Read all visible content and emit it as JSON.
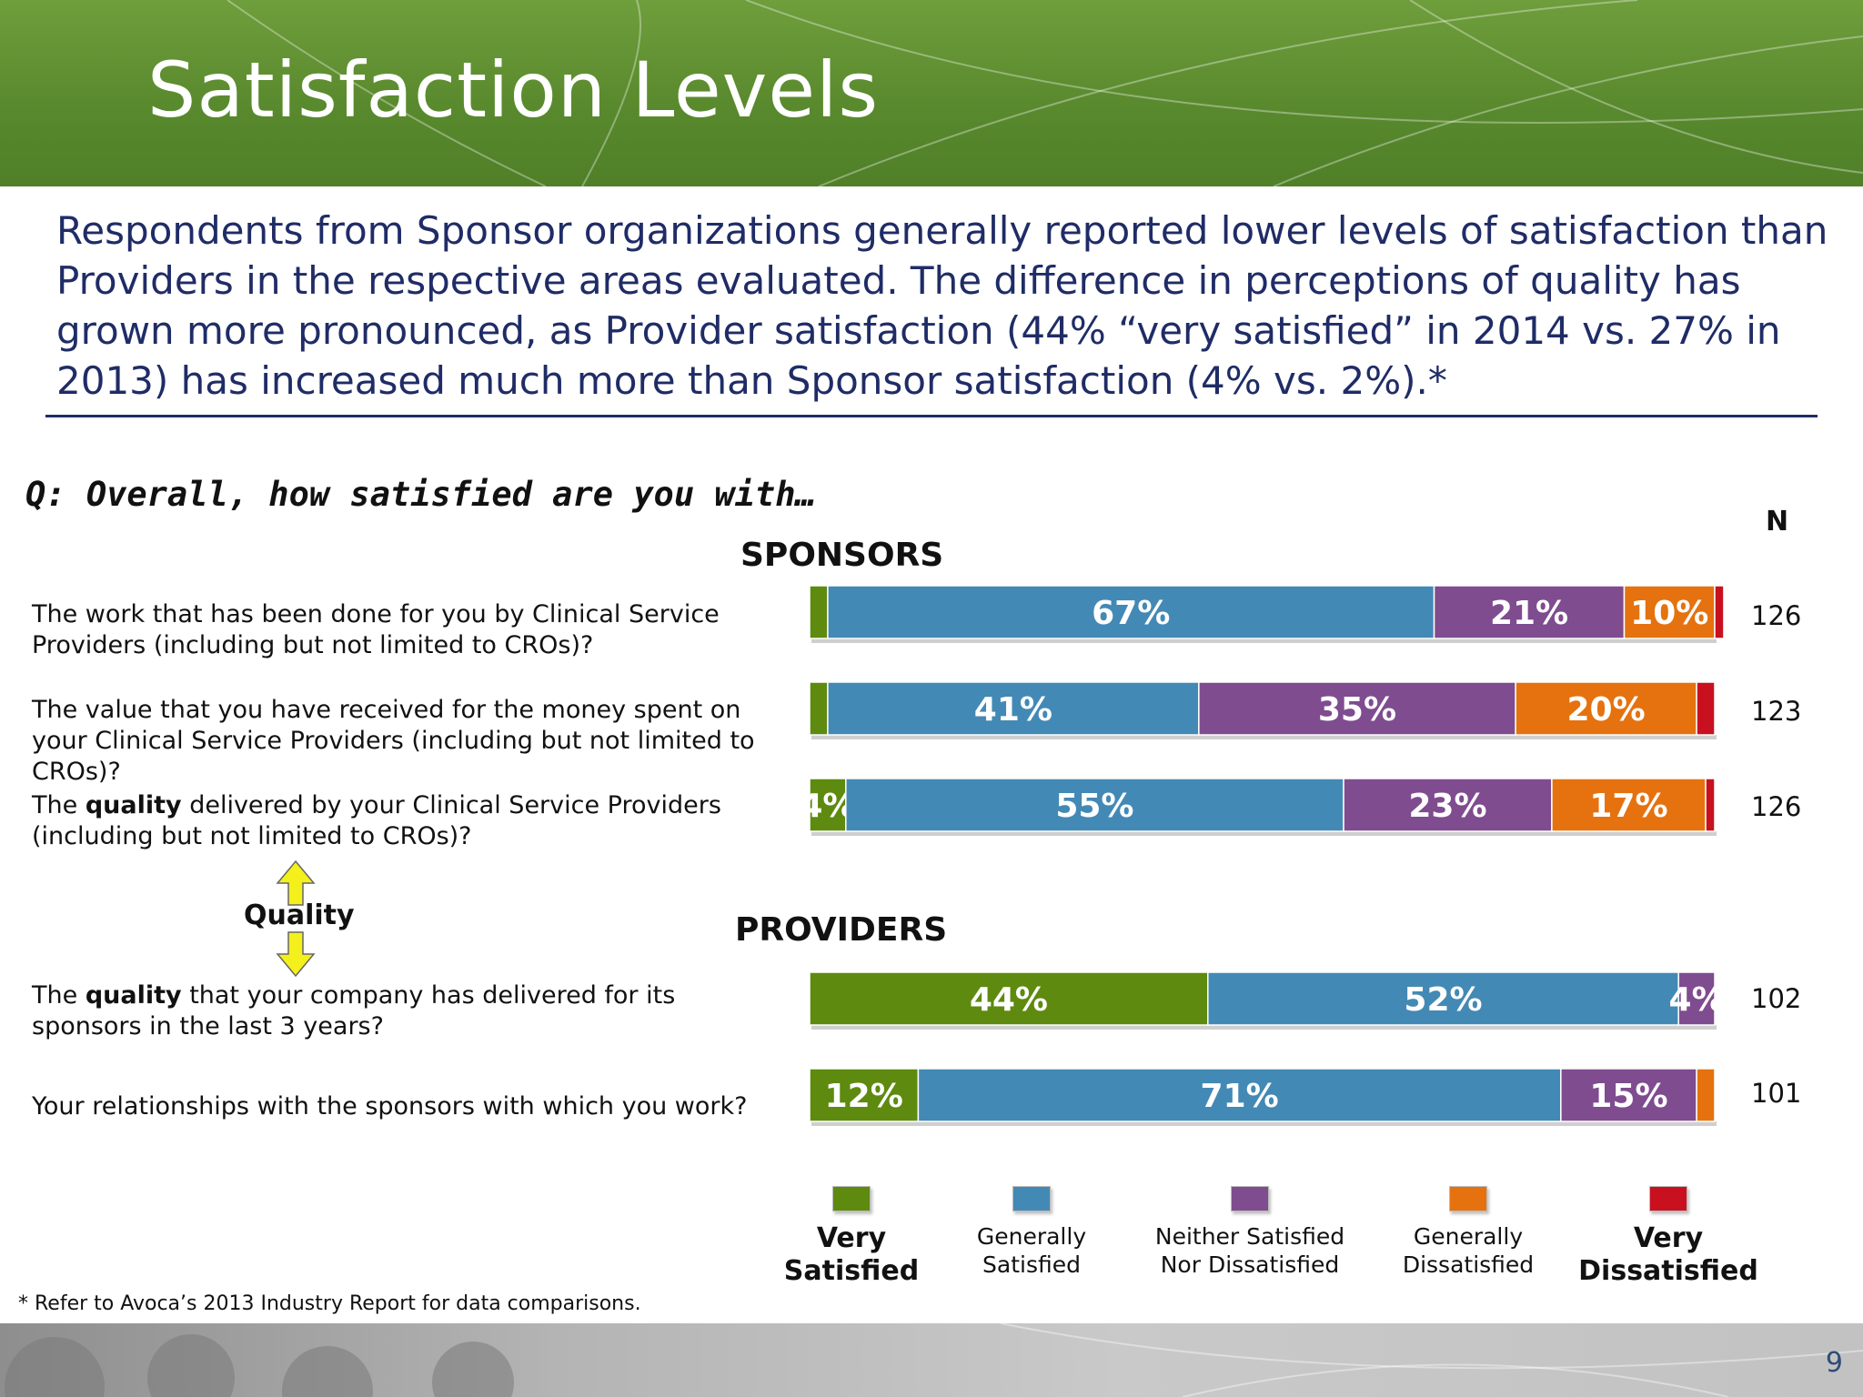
{
  "header": {
    "title": "Satisfaction Levels"
  },
  "lead": "Respondents from Sponsor organizations generally reported lower levels of satisfaction than Providers in the respective areas evaluated. The difference in perceptions of quality has grown more pronounced, as Provider satisfaction (44% “very satisfied” in 2014 vs. 27% in 2013) has increased much more than Sponsor satisfaction (4% vs. 2%).*",
  "question": "Q: Overall, how satisfied are you with…",
  "n_header": "N",
  "groups": {
    "sponsors": "SPONSORS",
    "providers": "PROVIDERS"
  },
  "rows": [
    {
      "pre": "The work that has been done for you by Clinical Service Providers (including but not limited to CROs)?",
      "bold": "",
      "post": "",
      "n": "126"
    },
    {
      "pre": "The value that you have received for the money spent on your Clinical Service Providers (including but not limited to CROs)?",
      "bold": "",
      "post": "",
      "n": "123"
    },
    {
      "pre": "The ",
      "bold": "quality",
      "post": " delivered by your Clinical Service Providers (including but not limited to CROs)?",
      "n": "126"
    },
    {
      "pre": "The ",
      "bold": "quality",
      "post": " that your company has delivered for its sponsors in the last 3 years?",
      "n": "102"
    },
    {
      "pre": "Your relationships with the sponsors with which you work?",
      "bold": "",
      "post": "",
      "n": "101"
    }
  ],
  "quality_marker": "Quality",
  "legend": [
    {
      "label_line1": "Very",
      "label_line2": "Satisfied",
      "big": true
    },
    {
      "label_line1": "Generally",
      "label_line2": "Satisfied",
      "big": false
    },
    {
      "label_line1": "Neither Satisfied",
      "label_line2": "Nor Dissatisfied",
      "big": false
    },
    {
      "label_line1": "Generally",
      "label_line2": "Dissatisfied",
      "big": false
    },
    {
      "label_line1": "Very",
      "label_line2": "Dissatisfied",
      "big": true
    }
  ],
  "footnote": "* Refer to Avoca’s 2013 Industry Report for data comparisons.",
  "page_number": "9",
  "colors": {
    "very_satisfied": "#5e8a0f",
    "generally_satisfied": "#4389b5",
    "neither": "#7f4c8f",
    "generally_dissatisfied": "#e5720f",
    "very_dissatisfied": "#c8101e"
  },
  "chart_data": {
    "type": "bar",
    "orientation": "horizontal",
    "stacked": true,
    "xlim": [
      0,
      100
    ],
    "categories": [
      "The work that has been done for you by Clinical Service Providers (including but not limited to CROs)?",
      "The value that you have received for the money spent on your Clinical Service Providers (including but not limited to CROs)?",
      "The quality delivered by your Clinical Service Providers (including but not limited to CROs)?",
      "The quality that your company has delivered for its sponsors in the last 3 years?",
      "Your relationships with the sponsors with which you work?"
    ],
    "series": [
      {
        "name": "Very Satisfied",
        "values": [
          2,
          2,
          4,
          44,
          12
        ],
        "labels": [
          "",
          "",
          "4%",
          "44%",
          "12%"
        ]
      },
      {
        "name": "Generally Satisfied",
        "values": [
          67,
          41,
          55,
          52,
          71
        ],
        "labels": [
          "67%",
          "41%",
          "55%",
          "52%",
          "71%"
        ]
      },
      {
        "name": "Neither Satisfied Nor Dissatisfied",
        "values": [
          21,
          35,
          23,
          4,
          15
        ],
        "labels": [
          "21%",
          "35%",
          "23%",
          "4%",
          "15%"
        ]
      },
      {
        "name": "Generally Dissatisfied",
        "values": [
          10,
          20,
          17,
          0,
          2
        ],
        "labels": [
          "10%",
          "20%",
          "17%",
          "",
          ""
        ]
      },
      {
        "name": "Very Dissatisfied",
        "values": [
          1,
          2,
          1,
          0,
          0
        ],
        "labels": [
          "",
          "",
          "",
          "",
          ""
        ]
      }
    ]
  }
}
